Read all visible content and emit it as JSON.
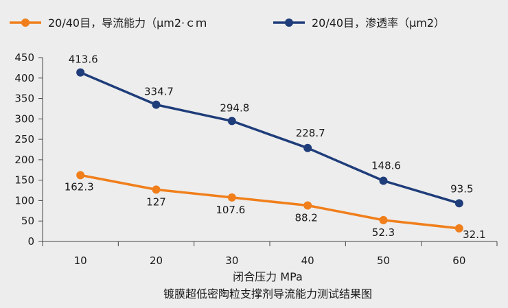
{
  "chart_data": {
    "type": "line",
    "title": "镀膜超低密陶粒支撑剂导流能力测试结果图",
    "xlabel": "闭合压力 MPa",
    "ylabel": "",
    "x": [
      10,
      20,
      30,
      40,
      50,
      60
    ],
    "ylim": [
      0,
      450
    ],
    "yticks": [
      0,
      50,
      100,
      150,
      200,
      250,
      300,
      350,
      400,
      450
    ],
    "grid": false,
    "legend_position": "top",
    "series": [
      {
        "name": "20/40目，导流能力（μm2·ｃｍ",
        "color": "#f07f1b",
        "values": [
          162.3,
          127,
          107.6,
          88.2,
          52.3,
          32.1
        ],
        "labels": [
          "162.3",
          "127",
          "107.6",
          "88.2",
          "52.3",
          "32.1"
        ]
      },
      {
        "name": "20/40目，渗透率（μm2）",
        "color": "#1f3d7a",
        "values": [
          413.6,
          334.7,
          294.8,
          228.7,
          148.6,
          93.5
        ],
        "labels": [
          "413.6",
          "334.7",
          "294.8",
          "228.7",
          "148.6",
          "93.5"
        ]
      }
    ]
  }
}
